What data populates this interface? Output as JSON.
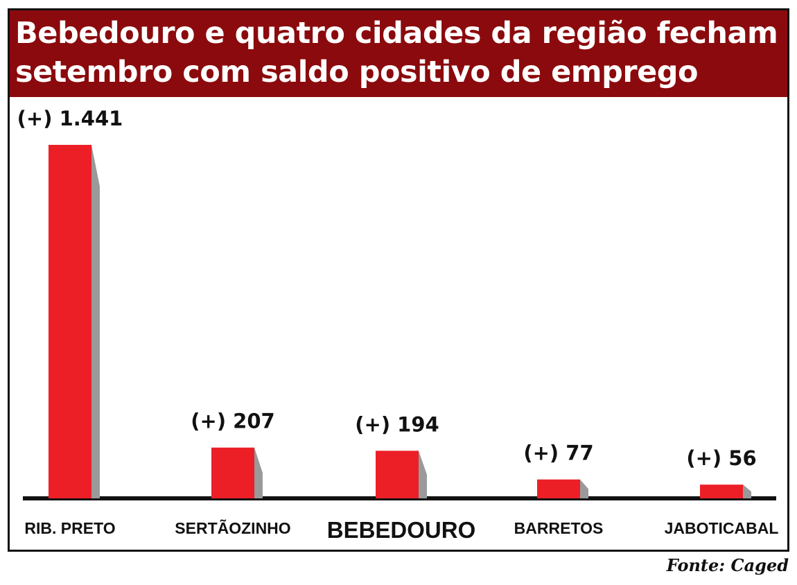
{
  "chart_data": {
    "type": "bar",
    "title": "Bebedouro e quatro cidades da região fecham\nsetembro com saldo positivo de emprego",
    "categories": [
      "RIB. PRETO",
      "SERTÃOZINHO",
      "BEBEDOURO",
      "BARRETOS",
      "JABOTICABAL"
    ],
    "values": [
      1441,
      207,
      194,
      77,
      56
    ],
    "value_labels": [
      "(+) 1.441",
      "(+) 207",
      "(+) 194",
      "(+) 77",
      "(+) 56"
    ],
    "highlight_category": "BEBEDOURO",
    "xlabel": "",
    "ylabel": "",
    "ylim": [
      0,
      1441
    ],
    "grid": false,
    "legend": "none",
    "colors": {
      "bar": "#ec1f27",
      "bar_shadow": "#9a9a9a",
      "title_band": "#8b0a0d",
      "title_text": "#ffffff",
      "axis": "#111111"
    }
  },
  "source": "Fonte: Caged"
}
